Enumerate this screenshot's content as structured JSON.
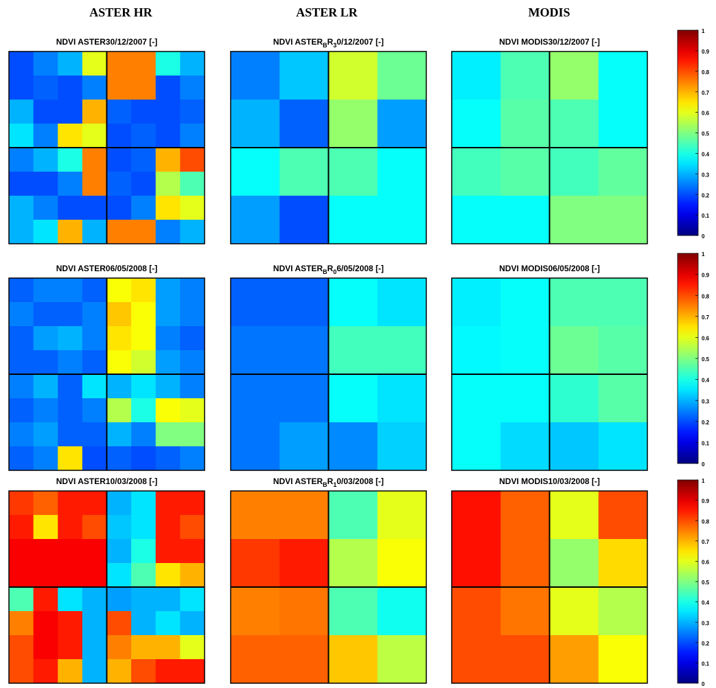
{
  "column_headers": [
    "ASTER HR",
    "ASTER LR",
    "MODIS"
  ],
  "colorbars": [
    {
      "zlim": [
        0,
        1
      ],
      "ticks": [
        0,
        0.1,
        0.2,
        0.3,
        0.4,
        0.5,
        0.6,
        0.7,
        0.8,
        0.9,
        1
      ]
    },
    {
      "zlim": [
        0,
        1
      ],
      "ticks": [
        0,
        0.1,
        0.2,
        0.3,
        0.4,
        0.5,
        0.6,
        0.7,
        0.8,
        0.9,
        1
      ]
    },
    {
      "zlim": [
        0,
        1
      ],
      "ticks": [
        0,
        0.1,
        0.2,
        0.3,
        0.4,
        0.5,
        0.6,
        0.7,
        0.8,
        0.9,
        1
      ]
    }
  ],
  "chart_data": [
    {
      "type": "heatmap",
      "title": "NDVI ASTER30/12/2007 [-]",
      "zlim": [
        0,
        1
      ],
      "values": [
        [
          0.2,
          0.25,
          0.3,
          0.6,
          0.75,
          0.75,
          0.4,
          0.3
        ],
        [
          0.2,
          0.22,
          0.2,
          0.25,
          0.75,
          0.75,
          0.2,
          0.25
        ],
        [
          0.3,
          0.2,
          0.2,
          0.7,
          0.22,
          0.2,
          0.2,
          0.22
        ],
        [
          0.35,
          0.25,
          0.65,
          0.6,
          0.2,
          0.22,
          0.2,
          0.25
        ],
        [
          0.25,
          0.3,
          0.4,
          0.75,
          0.2,
          0.22,
          0.7,
          0.8
        ],
        [
          0.2,
          0.2,
          0.25,
          0.75,
          0.22,
          0.2,
          0.55,
          0.45
        ],
        [
          0.3,
          0.25,
          0.2,
          0.2,
          0.2,
          0.25,
          0.65,
          0.6
        ],
        [
          0.3,
          0.35,
          0.7,
          0.3,
          0.75,
          0.75,
          0.25,
          0.3
        ]
      ]
    },
    {
      "type": "heatmap",
      "title_segments": [
        {
          "text": "NDVI ASTER"
        },
        {
          "text": "B",
          "sub": true
        },
        {
          "text": "R"
        },
        {
          "text": "3",
          "sub": true
        },
        {
          "text": "0/12/2007 [-]"
        }
      ],
      "zlim": [
        0,
        1
      ],
      "values": [
        [
          0.25,
          0.32,
          0.58,
          0.48
        ],
        [
          0.3,
          0.22,
          0.52,
          0.28
        ],
        [
          0.38,
          0.45,
          0.45,
          0.38
        ],
        [
          0.28,
          0.2,
          0.38,
          0.38
        ]
      ]
    },
    {
      "type": "heatmap",
      "title": "NDVI MODIS30/12/2007 [-]",
      "zlim": [
        0,
        1
      ],
      "values": [
        [
          0.36,
          0.45,
          0.52,
          0.38
        ],
        [
          0.38,
          0.46,
          0.45,
          0.38
        ],
        [
          0.44,
          0.46,
          0.44,
          0.47
        ],
        [
          0.38,
          0.38,
          0.5,
          0.5
        ]
      ]
    },
    {
      "type": "heatmap",
      "title": "NDVI ASTER06/05/2008 [-]",
      "zlim": [
        0,
        1
      ],
      "values": [
        [
          0.22,
          0.25,
          0.25,
          0.22,
          0.62,
          0.65,
          0.28,
          0.25
        ],
        [
          0.25,
          0.22,
          0.22,
          0.25,
          0.68,
          0.62,
          0.28,
          0.25
        ],
        [
          0.22,
          0.28,
          0.3,
          0.25,
          0.65,
          0.62,
          0.25,
          0.22
        ],
        [
          0.22,
          0.22,
          0.25,
          0.22,
          0.62,
          0.58,
          0.28,
          0.25
        ],
        [
          0.25,
          0.3,
          0.22,
          0.35,
          0.3,
          0.35,
          0.3,
          0.25
        ],
        [
          0.22,
          0.25,
          0.22,
          0.25,
          0.55,
          0.4,
          0.62,
          0.6
        ],
        [
          0.25,
          0.28,
          0.22,
          0.22,
          0.3,
          0.25,
          0.5,
          0.5
        ],
        [
          0.22,
          0.25,
          0.65,
          0.2,
          0.22,
          0.2,
          0.22,
          0.25
        ]
      ]
    },
    {
      "type": "heatmap",
      "title_segments": [
        {
          "text": "NDVI ASTER"
        },
        {
          "text": "B",
          "sub": true
        },
        {
          "text": "R"
        },
        {
          "text": "0",
          "sub": true
        },
        {
          "text": "6/05/2008 [-]"
        }
      ],
      "zlim": [
        0,
        1
      ],
      "values": [
        [
          0.22,
          0.22,
          0.38,
          0.35
        ],
        [
          0.24,
          0.24,
          0.44,
          0.44
        ],
        [
          0.24,
          0.24,
          0.38,
          0.35
        ],
        [
          0.24,
          0.28,
          0.26,
          0.33
        ]
      ]
    },
    {
      "type": "heatmap",
      "title": "NDVI MODIS06/05/2008 [-]",
      "zlim": [
        0,
        1
      ],
      "values": [
        [
          0.36,
          0.38,
          0.45,
          0.45
        ],
        [
          0.37,
          0.38,
          0.48,
          0.46
        ],
        [
          0.38,
          0.38,
          0.42,
          0.46
        ],
        [
          0.38,
          0.34,
          0.32,
          0.35
        ]
      ]
    },
    {
      "type": "heatmap",
      "title": "NDVI ASTER10/03/2008 [-]",
      "zlim": [
        0,
        1
      ],
      "values": [
        [
          0.82,
          0.78,
          0.85,
          0.85,
          0.3,
          0.35,
          0.85,
          0.85
        ],
        [
          0.85,
          0.65,
          0.85,
          0.8,
          0.32,
          0.35,
          0.85,
          0.8
        ],
        [
          0.88,
          0.88,
          0.88,
          0.88,
          0.3,
          0.4,
          0.85,
          0.85
        ],
        [
          0.88,
          0.88,
          0.88,
          0.88,
          0.35,
          0.45,
          0.65,
          0.7
        ],
        [
          0.45,
          0.85,
          0.35,
          0.3,
          0.28,
          0.3,
          0.3,
          0.35
        ],
        [
          0.75,
          0.88,
          0.85,
          0.3,
          0.8,
          0.3,
          0.35,
          0.3
        ],
        [
          0.8,
          0.88,
          0.85,
          0.3,
          0.75,
          0.7,
          0.7,
          0.6
        ],
        [
          0.8,
          0.85,
          0.7,
          0.3,
          0.7,
          0.8,
          0.85,
          0.85
        ]
      ]
    },
    {
      "type": "heatmap",
      "title_segments": [
        {
          "text": "NDVI ASTER"
        },
        {
          "text": "B",
          "sub": true
        },
        {
          "text": "R"
        },
        {
          "text": "1",
          "sub": true
        },
        {
          "text": "0/03/2008 [-]"
        }
      ],
      "zlim": [
        0,
        1
      ],
      "values": [
        [
          0.75,
          0.75,
          0.45,
          0.6
        ],
        [
          0.82,
          0.85,
          0.55,
          0.62
        ],
        [
          0.75,
          0.76,
          0.45,
          0.39
        ],
        [
          0.78,
          0.78,
          0.68,
          0.56
        ]
      ]
    },
    {
      "type": "heatmap",
      "title": "NDVI MODIS10/03/2008 [-]",
      "zlim": [
        0,
        1
      ],
      "values": [
        [
          0.86,
          0.78,
          0.6,
          0.8
        ],
        [
          0.86,
          0.78,
          0.52,
          0.66
        ],
        [
          0.8,
          0.76,
          0.6,
          0.55
        ],
        [
          0.8,
          0.8,
          0.72,
          0.62
        ]
      ]
    }
  ]
}
